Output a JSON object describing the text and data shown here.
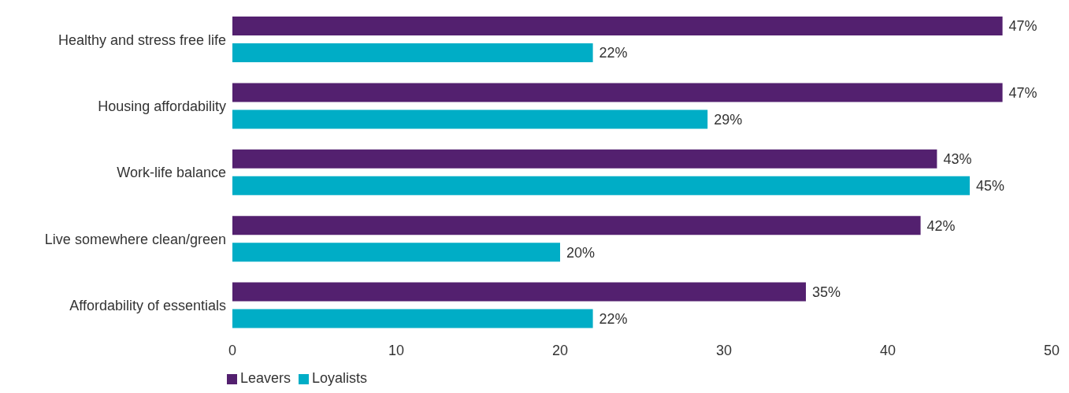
{
  "chart_data": {
    "type": "bar",
    "orientation": "horizontal",
    "categories": [
      "Healthy and stress free life",
      "Housing affordability",
      "Work-life balance",
      "Live somewhere clean/green",
      "Affordability of essentials"
    ],
    "series": [
      {
        "name": "Leavers",
        "color": "#53206f",
        "values": [
          47,
          47,
          43,
          42,
          35
        ],
        "value_labels": [
          "47%",
          "47%",
          "43%",
          "42%",
          "35%"
        ]
      },
      {
        "name": "Loyalists",
        "color": "#00adc6",
        "values": [
          22,
          29,
          45,
          20,
          22
        ],
        "value_labels": [
          "22%",
          "29%",
          "45%",
          "20%",
          "22%"
        ]
      }
    ],
    "xlim": [
      0,
      50
    ],
    "xticks": [
      0,
      10,
      20,
      30,
      40,
      50
    ],
    "grid": false,
    "legend": "bottom left"
  }
}
